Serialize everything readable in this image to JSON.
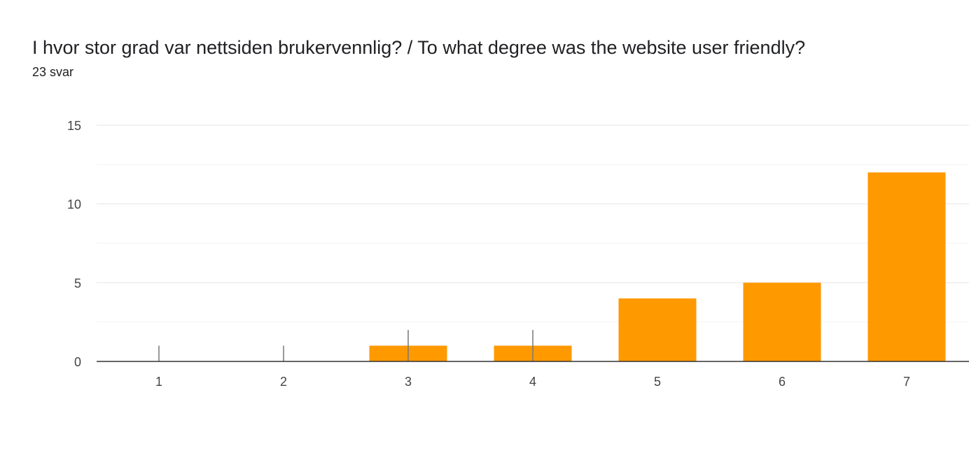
{
  "header": {
    "title": "I hvor stor grad var nettsiden brukervennlig? / To what degree was the website user friendly?",
    "responses": "23 svar"
  },
  "colors": {
    "bar": "#FF9900",
    "grid": "#E6E6E6",
    "axis": "#333333",
    "error_bar": "#777777"
  },
  "chart_data": {
    "type": "bar",
    "categories": [
      "1",
      "2",
      "3",
      "4",
      "5",
      "6",
      "7"
    ],
    "values": [
      0,
      0,
      1,
      1,
      4,
      5,
      12
    ],
    "error_bars": [
      [
        0,
        1
      ],
      [
        0,
        1
      ],
      [
        0,
        2
      ],
      [
        0,
        2
      ],
      null,
      null,
      null
    ],
    "title": "I hvor stor grad var nettsiden brukervennlig? / To what degree was the website user friendly?",
    "xlabel": "",
    "ylabel": "",
    "ylim": [
      0,
      15
    ],
    "yticks": [
      0,
      5,
      10,
      15
    ],
    "grid": true,
    "legend": "none"
  }
}
